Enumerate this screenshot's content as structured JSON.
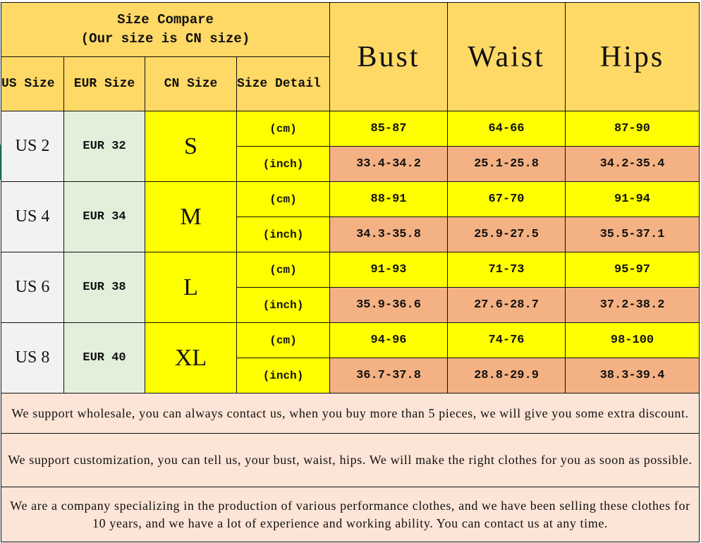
{
  "header": {
    "title_line1": "Size Compare",
    "title_line2": "(Our size is CN size)",
    "columns": [
      "US Size",
      "EUR Size",
      "CN Size",
      "Size Detail"
    ],
    "measures": [
      "Bust",
      "Waist",
      "Hips"
    ]
  },
  "units": {
    "cm": "(cm)",
    "inch": "(inch)"
  },
  "rows": [
    {
      "us": "US 2",
      "eur": "EUR 32",
      "cn": "S",
      "cm": [
        "85-87",
        "64-66",
        "87-90"
      ],
      "inch": [
        "33.4-34.2",
        "25.1-25.8",
        "34.2-35.4"
      ]
    },
    {
      "us": "US 4",
      "eur": "EUR 34",
      "cn": "M",
      "cm": [
        "88-91",
        "67-70",
        "91-94"
      ],
      "inch": [
        "34.3-35.8",
        "25.9-27.5",
        "35.5-37.1"
      ]
    },
    {
      "us": "US 6",
      "eur": "EUR 38",
      "cn": "L",
      "cm": [
        "91-93",
        "71-73",
        "95-97"
      ],
      "inch": [
        "35.9-36.6",
        "27.6-28.7",
        "37.2-38.2"
      ]
    },
    {
      "us": "US 8",
      "eur": "EUR 40",
      "cn": "XL",
      "cm": [
        "94-96",
        "74-76",
        "98-100"
      ],
      "inch": [
        "36.7-37.8",
        "28.8-29.9",
        "38.3-39.4"
      ]
    }
  ],
  "notes": [
    "We support wholesale, you can always contact us, when you buy more than 5 pieces, we will give you some extra discount.",
    "We support customization, you can tell us, your bust, waist, hips. We will make the right clothes for you as soon as possible.",
    "We are a company specializing in the production of various performance clothes, and we have been selling these clothes for 10 years, and we have a lot of experience and working ability. You can contact us at any time."
  ],
  "colors": {
    "header": "#FFD966",
    "us": "#F2F2F2",
    "eur": "#E2EFDA",
    "yellow": "#FFFF00",
    "inch": "#F4B183",
    "note": "#FCE4D6"
  }
}
